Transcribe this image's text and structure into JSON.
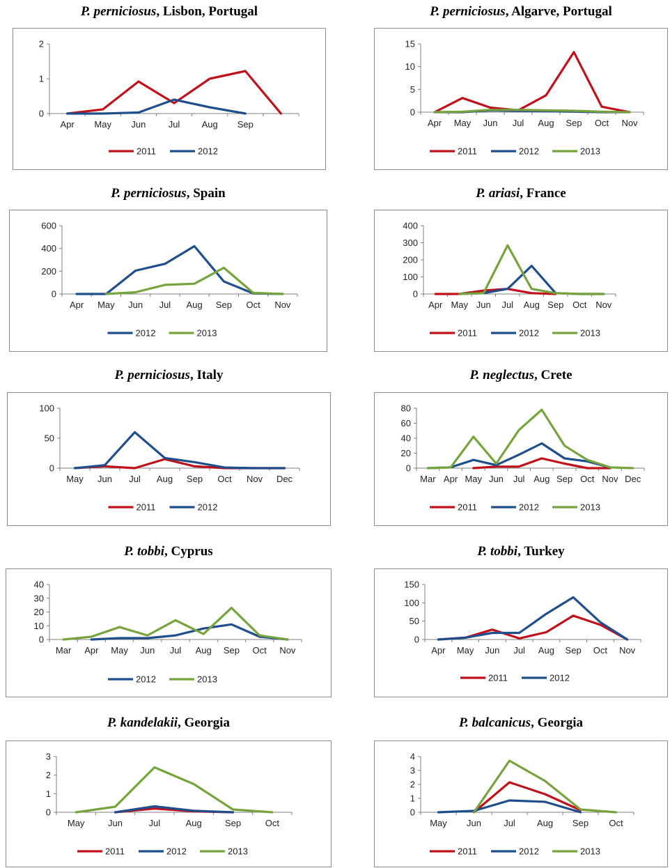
{
  "colors": {
    "2011": "#c0111a",
    "2012": "#1f4e8c",
    "2013": "#77a33c"
  },
  "chart_data": [
    {
      "type": "line",
      "title_species": "P. perniciosus",
      "title_rest": ", Lisbon, Portugal",
      "categories": [
        "Apr",
        "May",
        "Jun",
        "Jul",
        "Aug",
        "Sep",
        ""
      ],
      "ylim": [
        0,
        2
      ],
      "yticks": [
        0,
        1,
        2
      ],
      "series": [
        {
          "name": "2011",
          "values": [
            0,
            0.12,
            0.92,
            0.3,
            1.0,
            1.22,
            0
          ]
        },
        {
          "name": "2012",
          "values": [
            0,
            0,
            0.03,
            0.4,
            0.18,
            0,
            null
          ]
        }
      ]
    },
    {
      "type": "line",
      "title_species": "P. perniciosus",
      "title_rest": ", Algarve, Portugal",
      "categories": [
        "Apr",
        "May",
        "Jun",
        "Jul",
        "Aug",
        "Sep",
        "Oct",
        "Nov"
      ],
      "ylim": [
        0,
        15
      ],
      "yticks": [
        0,
        5,
        10,
        15
      ],
      "series": [
        {
          "name": "2011",
          "values": [
            0,
            3.1,
            1.0,
            0.4,
            3.7,
            13.2,
            1.2,
            0
          ]
        },
        {
          "name": "2012",
          "values": [
            0,
            0,
            0.4,
            0.3,
            0.2,
            0.1,
            0.0,
            0
          ]
        },
        {
          "name": "2013",
          "values": [
            0,
            0.1,
            0.5,
            0.5,
            0.4,
            0.3,
            0.1,
            0
          ]
        }
      ]
    },
    {
      "type": "line",
      "title_species": "P. perniciosus",
      "title_rest": ", Spain",
      "categories": [
        "Apr",
        "May",
        "Jun",
        "Jul",
        "Aug",
        "Sep",
        "Oct",
        "Nov"
      ],
      "ylim": [
        0,
        600
      ],
      "yticks": [
        0,
        200,
        400,
        600
      ],
      "series": [
        {
          "name": "2012",
          "values": [
            0,
            0,
            205,
            265,
            420,
            110,
            5,
            0
          ]
        },
        {
          "name": "2013",
          "values": [
            null,
            0,
            15,
            80,
            90,
            230,
            10,
            0
          ]
        }
      ]
    },
    {
      "type": "line",
      "title_species": "P. ariasi",
      "title_rest": ", France",
      "categories": [
        "Apr",
        "May",
        "Jun",
        "Jul",
        "Aug",
        "Sep",
        "Oct",
        "Nov"
      ],
      "ylim": [
        0,
        400
      ],
      "yticks": [
        0,
        100,
        200,
        300,
        400
      ],
      "series": [
        {
          "name": "2011",
          "values": [
            0,
            0,
            20,
            30,
            5,
            0,
            null,
            null
          ]
        },
        {
          "name": "2012",
          "values": [
            null,
            0,
            5,
            30,
            165,
            5,
            0,
            0
          ]
        },
        {
          "name": "2013",
          "values": [
            null,
            0,
            5,
            285,
            30,
            5,
            0,
            0
          ]
        }
      ]
    },
    {
      "type": "line",
      "title_species": "P. perniciosus",
      "title_rest": ", Italy",
      "categories": [
        "May",
        "Jun",
        "Jul",
        "Aug",
        "Sep",
        "Oct",
        "Nov",
        "Dec"
      ],
      "ylim": [
        0,
        100
      ],
      "yticks": [
        0,
        50,
        100
      ],
      "series": [
        {
          "name": "2011",
          "values": [
            0,
            3,
            0,
            15,
            3,
            0,
            0,
            0
          ]
        },
        {
          "name": "2012",
          "values": [
            0,
            5,
            60,
            17,
            10,
            1,
            0,
            0
          ]
        }
      ]
    },
    {
      "type": "line",
      "title_species": "P. neglectus",
      "title_rest": ", Crete",
      "categories": [
        "Mar",
        "Apr",
        "May",
        "Jun",
        "Jul",
        "Aug",
        "Sep",
        "Oct",
        "Nov",
        "Dec"
      ],
      "ylim": [
        0,
        80
      ],
      "yticks": [
        0,
        20,
        40,
        60,
        80
      ],
      "series": [
        {
          "name": "2011",
          "values": [
            null,
            null,
            0,
            2,
            2,
            13,
            6,
            0,
            0,
            null
          ]
        },
        {
          "name": "2012",
          "values": [
            0,
            1,
            11,
            4,
            18,
            33,
            13,
            9,
            1,
            null
          ]
        },
        {
          "name": "2013",
          "values": [
            0,
            1,
            42,
            6,
            51,
            78,
            30,
            11,
            1,
            0
          ]
        }
      ]
    },
    {
      "type": "line",
      "title_species": "P. tobbi",
      "title_rest": ", Cyprus",
      "categories": [
        "Mar",
        "Apr",
        "May",
        "Jun",
        "Jul",
        "Aug",
        "Sep",
        "Oct",
        "Nov"
      ],
      "ylim": [
        0,
        40
      ],
      "yticks": [
        0,
        10,
        20,
        30,
        40
      ],
      "series": [
        {
          "name": "2012",
          "values": [
            null,
            0,
            1,
            1,
            3,
            8,
            11,
            2,
            0
          ]
        },
        {
          "name": "2013",
          "values": [
            0,
            2,
            9,
            3,
            14,
            4,
            23,
            3,
            0
          ]
        }
      ]
    },
    {
      "type": "line",
      "title_species": "P. tobbi",
      "title_rest": ", Turkey",
      "categories": [
        "Apr",
        "May",
        "Jun",
        "Jul",
        "Aug",
        "Sep",
        "Oct",
        "Nov"
      ],
      "ylim": [
        0,
        150
      ],
      "yticks": [
        0,
        50,
        100,
        150
      ],
      "series": [
        {
          "name": "2011",
          "values": [
            0,
            5,
            27,
            3,
            20,
            65,
            40,
            0
          ]
        },
        {
          "name": "2012",
          "values": [
            0,
            5,
            18,
            18,
            70,
            115,
            47,
            0
          ]
        }
      ]
    },
    {
      "type": "line",
      "title_species": "P. kandelakii",
      "title_rest": ", Georgia",
      "categories": [
        "May",
        "Jun",
        "Jul",
        "Aug",
        "Sep",
        "Oct"
      ],
      "ylim": [
        0,
        3
      ],
      "yticks": [
        0,
        1,
        2,
        3
      ],
      "series": [
        {
          "name": "2011",
          "values": [
            null,
            0,
            0.2,
            0.05,
            0,
            null
          ]
        },
        {
          "name": "2012",
          "values": [
            null,
            0,
            0.32,
            0.08,
            0,
            null
          ]
        },
        {
          "name": "2013",
          "values": [
            0,
            0.3,
            2.42,
            1.52,
            0.15,
            0
          ]
        }
      ]
    },
    {
      "type": "line",
      "title_species": "P. balcanicus",
      "title_rest": ", Georgia",
      "categories": [
        "May",
        "Jun",
        "Jul",
        "Aug",
        "Sep",
        "Oct"
      ],
      "ylim": [
        0,
        4
      ],
      "yticks": [
        0,
        1,
        2,
        3,
        4
      ],
      "series": [
        {
          "name": "2011",
          "values": [
            null,
            0,
            2.15,
            1.3,
            0.15,
            null
          ]
        },
        {
          "name": "2012",
          "values": [
            0,
            0.1,
            0.85,
            0.75,
            0,
            null
          ]
        },
        {
          "name": "2013",
          "values": [
            null,
            0,
            3.7,
            2.25,
            0.2,
            0
          ]
        }
      ]
    }
  ]
}
